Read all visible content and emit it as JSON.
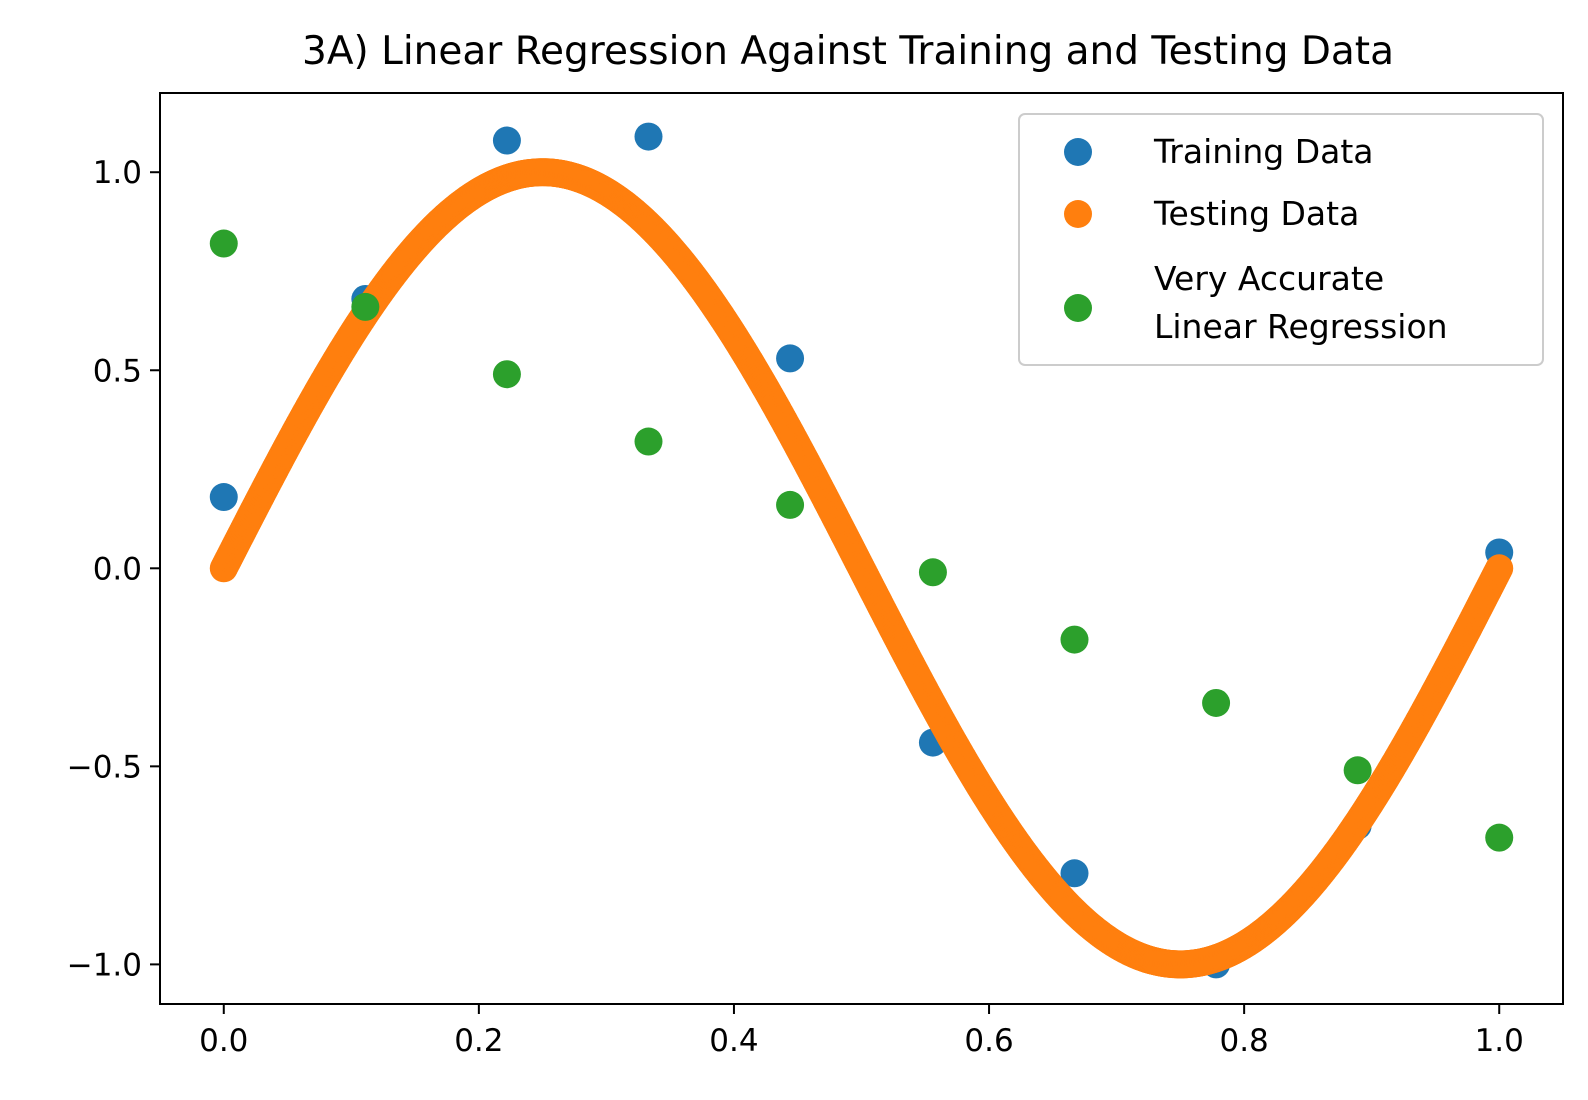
{
  "chart_data": {
    "type": "scatter",
    "title": "3A) Linear Regression Against Training and Testing Data",
    "xlabel": "",
    "ylabel": "",
    "xlim": [
      -0.05,
      1.05
    ],
    "ylim": [
      -1.1,
      1.2
    ],
    "xticks": [
      0.0,
      0.2,
      0.4,
      0.6,
      0.8,
      1.0
    ],
    "xtick_labels": [
      "0.0",
      "0.2",
      "0.4",
      "0.6",
      "0.8",
      "1.0"
    ],
    "yticks": [
      -1.0,
      -0.5,
      0.0,
      0.5,
      1.0
    ],
    "ytick_labels": [
      "−1.0",
      "−0.5",
      "0.0",
      "0.5",
      "1.0"
    ],
    "grid": false,
    "legend_position": "top-right",
    "series": [
      {
        "name": "Training Data",
        "color": "#1f77b4",
        "x": [
          0.0,
          0.111,
          0.222,
          0.333,
          0.444,
          0.556,
          0.667,
          0.778,
          0.889,
          1.0
        ],
        "y": [
          0.18,
          0.68,
          1.08,
          1.09,
          0.53,
          -0.44,
          -0.77,
          -1.0,
          -0.65,
          0.04
        ]
      },
      {
        "name": "Testing Data",
        "color": "#ff7f0e",
        "function": "sin(2*pi*x)",
        "x_range": [
          0.0,
          1.0
        ],
        "point_count": 1000
      },
      {
        "name": "Very Accurate Linear Regression",
        "legend_lines": [
          "Very Accurate",
          "Linear Regression"
        ],
        "color": "#2ca02c",
        "x": [
          0.0,
          0.111,
          0.222,
          0.333,
          0.444,
          0.556,
          0.667,
          0.778,
          0.889,
          1.0
        ],
        "y": [
          0.82,
          0.66,
          0.49,
          0.32,
          0.16,
          -0.01,
          -0.18,
          -0.34,
          -0.51,
          -0.68
        ]
      }
    ]
  }
}
